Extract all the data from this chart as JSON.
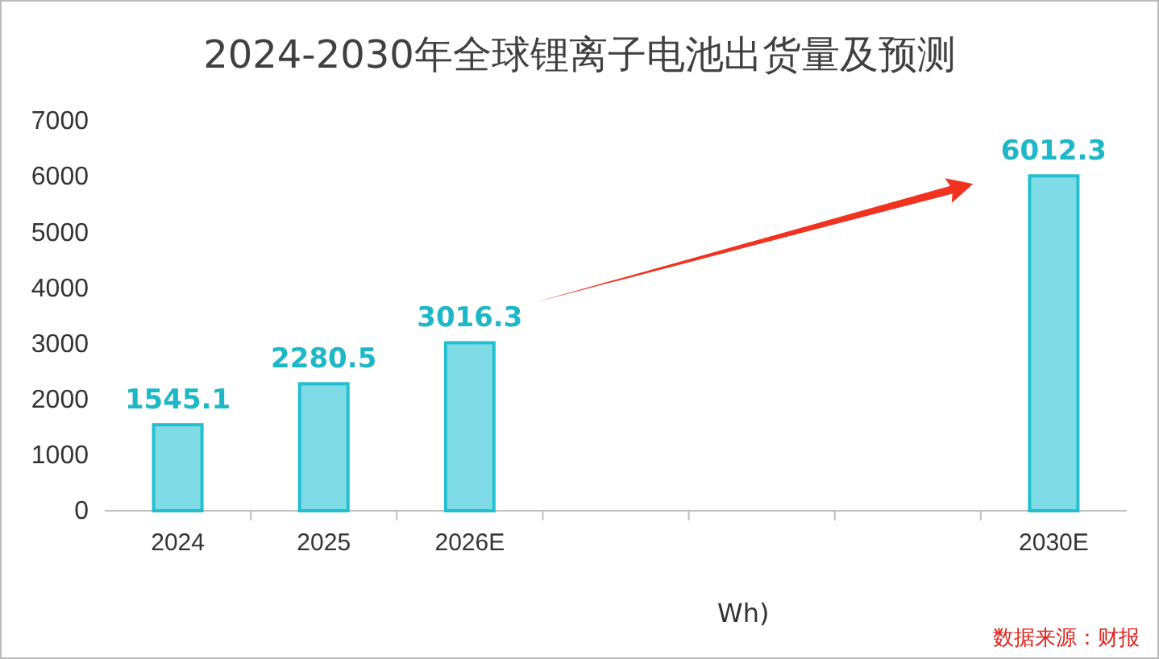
{
  "chart_data": {
    "type": "bar",
    "title": "2024-2030年全球锂离子电池出货量及预测",
    "categories": [
      "2024",
      "2025",
      "2026E",
      null,
      null,
      null,
      "2030E"
    ],
    "values": [
      1545.1,
      2280.5,
      3016.3,
      null,
      null,
      null,
      6012.3
    ],
    "color": "#7fdce6",
    "data_labels": true,
    "ylim": [
      0,
      7000
    ],
    "yticks": [
      0,
      1000,
      2000,
      3000,
      4000,
      5000,
      6000,
      7000
    ],
    "grid": false,
    "annotations": [
      "Wh)",
      "数据来源：财报"
    ]
  }
}
